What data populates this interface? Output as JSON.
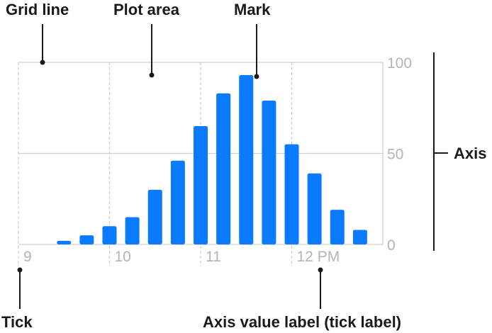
{
  "annotations": {
    "grid_line": "Grid line",
    "plot_area": "Plot area",
    "mark": "Mark",
    "axis": "Axis",
    "tick": "Tick",
    "tick_label": "Axis value label (tick label)"
  },
  "colors": {
    "bar": "#0a7aff",
    "grid": "#cfcfcf",
    "tick_label": "#b4b4b4",
    "annotation": "#1a1a1a"
  },
  "chart_data": {
    "type": "bar",
    "x": [
      9.25,
      9.5,
      9.75,
      10.0,
      10.25,
      10.5,
      10.75,
      11.0,
      11.25,
      11.5,
      11.75,
      12.0,
      12.25,
      12.5,
      12.75
    ],
    "values": [
      0,
      2,
      5,
      10,
      15,
      30,
      46,
      65,
      83,
      93,
      79,
      55,
      39,
      19,
      8
    ],
    "x_ticks": [
      {
        "value": 9,
        "label": "9"
      },
      {
        "value": 10,
        "label": "10"
      },
      {
        "value": 11,
        "label": "11"
      },
      {
        "value": 12,
        "label": "12 PM"
      }
    ],
    "y_ticks": [
      {
        "value": 0,
        "label": "0"
      },
      {
        "value": 50,
        "label": "50"
      },
      {
        "value": 100,
        "label": "100"
      }
    ],
    "ylim": [
      0,
      100
    ],
    "xlim": [
      9,
      13
    ]
  }
}
